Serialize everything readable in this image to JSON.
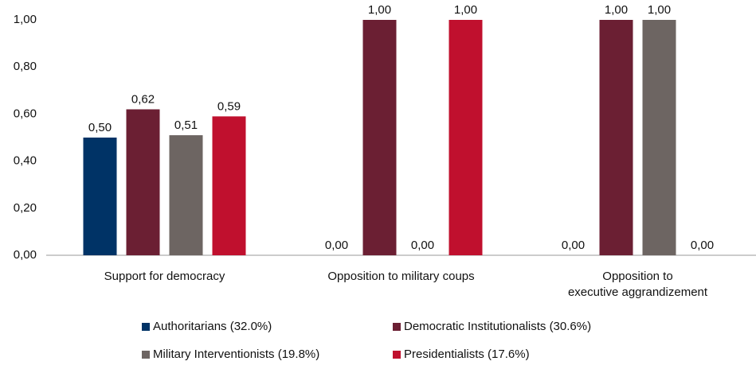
{
  "chart_data": {
    "type": "bar",
    "categories": [
      "Support for democracy",
      "Opposition to military coups",
      "Opposition to executive aggrandizement"
    ],
    "series": [
      {
        "name": "Authoritarians (32.0%)",
        "color": "#003366",
        "values": [
          0.5,
          0,
          0
        ],
        "value_labels": [
          "0,50",
          "0,00",
          "0,00"
        ]
      },
      {
        "name": "Democratic Institutionalists (30.6%)",
        "color": "#6b1f33",
        "values": [
          0.62,
          1,
          1
        ],
        "value_labels": [
          "0,62",
          "1,00",
          "1,00"
        ]
      },
      {
        "name": "Military Interventionists (19.8%)",
        "color": "#6d6562",
        "values": [
          0.51,
          0,
          1
        ],
        "value_labels": [
          "0,51",
          "0,00",
          "1,00"
        ]
      },
      {
        "name": "Presidentialists (17.6%)",
        "color": "#c0102e",
        "values": [
          0.59,
          1,
          0
        ],
        "value_labels": [
          "0,59",
          "1,00",
          "0,00"
        ]
      }
    ],
    "ylim": [
      0,
      1
    ],
    "yticks": [
      {
        "value": 0,
        "label": "0,00"
      },
      {
        "value": 0.2,
        "label": "0,20"
      },
      {
        "value": 0.4,
        "label": "0,40"
      },
      {
        "value": 0.6,
        "label": "0,60"
      },
      {
        "value": 0.8,
        "label": "0,80"
      },
      {
        "value": 1,
        "label": "1,00"
      }
    ],
    "grid": false,
    "legend": "bottom"
  }
}
